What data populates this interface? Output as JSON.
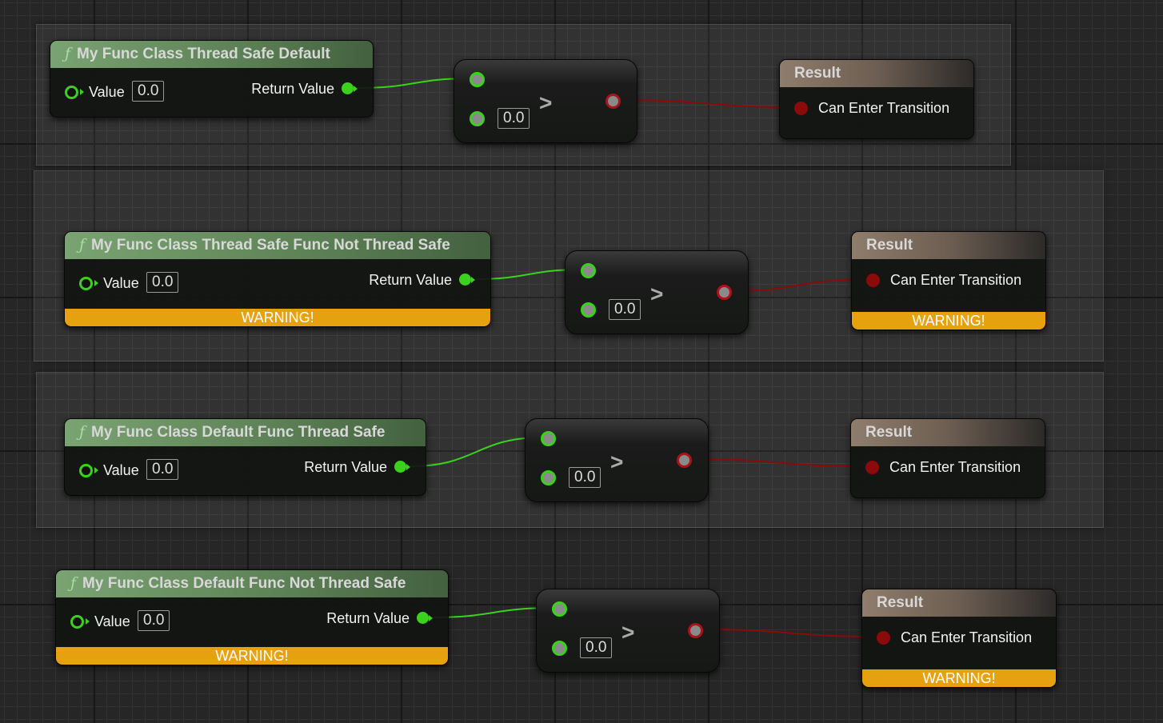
{
  "colors": {
    "float_pin": "#3ad21c",
    "bool_pin": "#a8141a",
    "warning": "#e6a20e",
    "function_header": "#6b9163",
    "result_header": "#7d6e60"
  },
  "rows": [
    {
      "function": {
        "icon": "function-icon",
        "title": "My Func Class Thread Safe Default",
        "input_label": "Value",
        "input_value": "0.0",
        "output_label": "Return Value",
        "warning": null
      },
      "compare": {
        "operator": ">",
        "b_value": "0.0"
      },
      "result": {
        "title": "Result",
        "pin_label": "Can Enter Transition",
        "warning": null
      }
    },
    {
      "function": {
        "icon": "function-icon",
        "title": "My Func Class Thread Safe Func Not Thread Safe",
        "input_label": "Value",
        "input_value": "0.0",
        "output_label": "Return Value",
        "warning": "WARNING!"
      },
      "compare": {
        "operator": ">",
        "b_value": "0.0"
      },
      "result": {
        "title": "Result",
        "pin_label": "Can Enter Transition",
        "warning": "WARNING!"
      }
    },
    {
      "function": {
        "icon": "function-icon",
        "title": "My Func Class Default Func Thread Safe",
        "input_label": "Value",
        "input_value": "0.0",
        "output_label": "Return Value",
        "warning": null
      },
      "compare": {
        "operator": ">",
        "b_value": "0.0"
      },
      "result": {
        "title": "Result",
        "pin_label": "Can Enter Transition",
        "warning": null
      }
    },
    {
      "function": {
        "icon": "function-icon",
        "title": "My Func Class Default Func Not Thread Safe",
        "input_label": "Value",
        "input_value": "0.0",
        "output_label": "Return Value",
        "warning": "WARNING!"
      },
      "compare": {
        "operator": ">",
        "b_value": "0.0"
      },
      "result": {
        "title": "Result",
        "pin_label": "Can Enter Transition",
        "warning": "WARNING!"
      }
    }
  ]
}
